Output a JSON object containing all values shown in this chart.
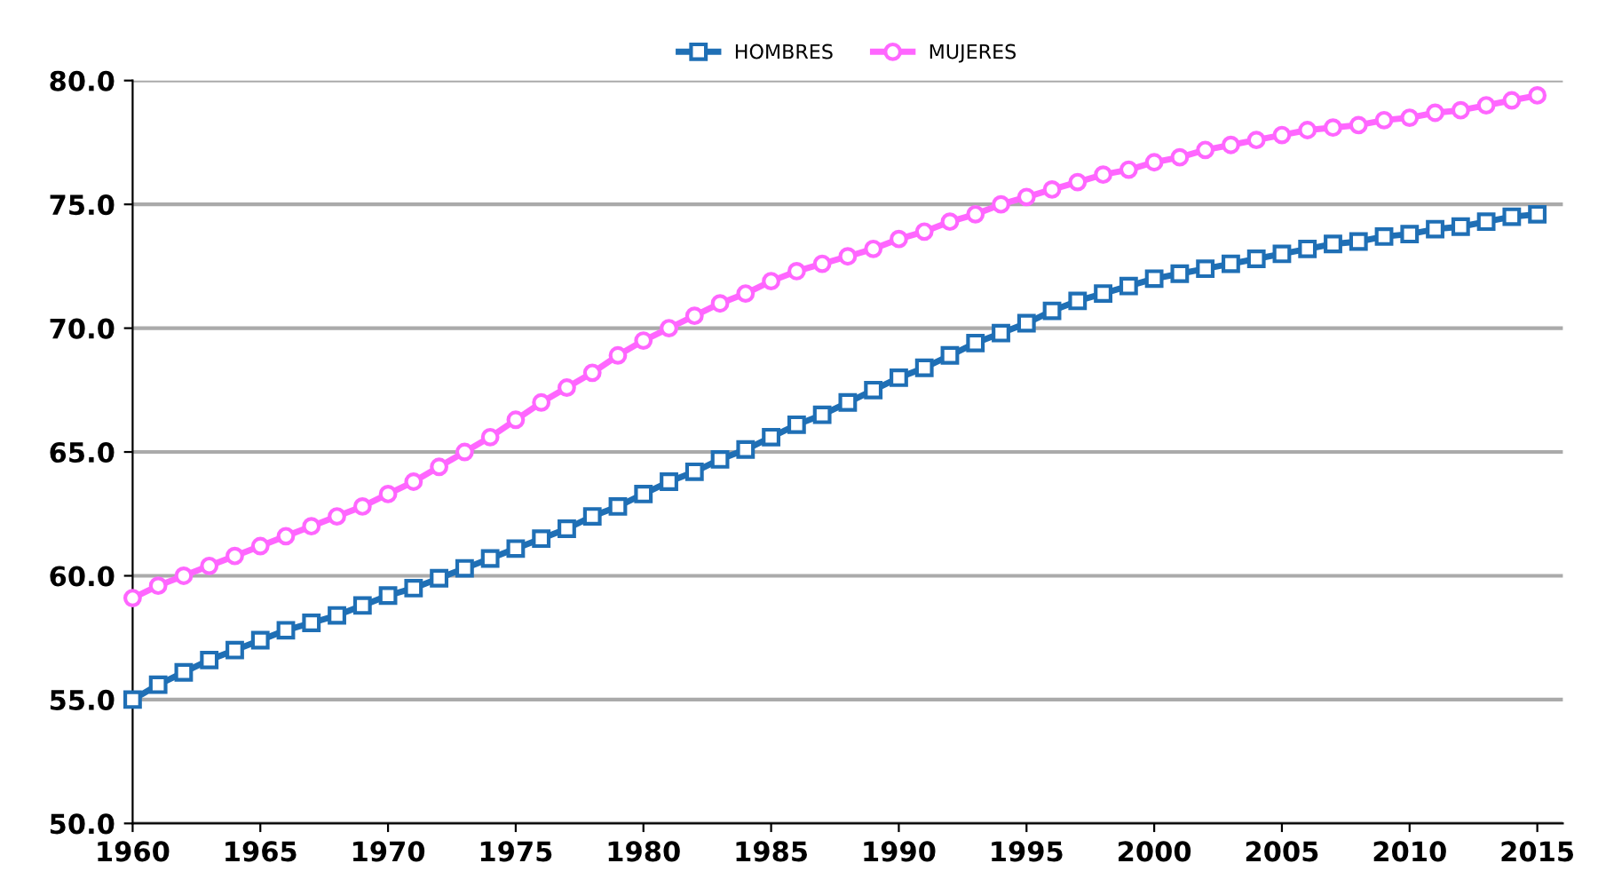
{
  "chart_data": {
    "type": "line",
    "x": [
      1960,
      1961,
      1962,
      1963,
      1964,
      1965,
      1966,
      1967,
      1968,
      1969,
      1970,
      1971,
      1972,
      1973,
      1974,
      1975,
      1976,
      1977,
      1978,
      1979,
      1980,
      1981,
      1982,
      1983,
      1984,
      1985,
      1986,
      1987,
      1988,
      1989,
      1990,
      1991,
      1992,
      1993,
      1994,
      1995,
      1996,
      1997,
      1998,
      1999,
      2000,
      2001,
      2002,
      2003,
      2004,
      2005,
      2006,
      2007,
      2008,
      2009,
      2010,
      2011,
      2012,
      2013,
      2014,
      2015
    ],
    "series": [
      {
        "name": "HOMBRES",
        "color": "#1f6fb5",
        "marker": "square",
        "values": [
          55.0,
          55.6,
          56.1,
          56.6,
          57.0,
          57.4,
          57.8,
          58.1,
          58.4,
          58.8,
          59.2,
          59.5,
          59.9,
          60.3,
          60.7,
          61.1,
          61.5,
          61.9,
          62.4,
          62.8,
          63.3,
          63.8,
          64.2,
          64.7,
          65.1,
          65.6,
          66.1,
          66.5,
          67.0,
          67.5,
          68.0,
          68.4,
          68.9,
          69.4,
          69.8,
          70.2,
          70.7,
          71.1,
          71.4,
          71.7,
          72.0,
          72.2,
          72.4,
          72.6,
          72.8,
          73.0,
          73.2,
          73.4,
          73.5,
          73.7,
          73.8,
          74.0,
          74.1,
          74.3,
          74.5,
          74.6
        ]
      },
      {
        "name": "MUJERES",
        "color": "#ff66ff",
        "marker": "circle",
        "values": [
          59.1,
          59.6,
          60.0,
          60.4,
          60.8,
          61.2,
          61.6,
          62.0,
          62.4,
          62.8,
          63.3,
          63.8,
          64.4,
          65.0,
          65.6,
          66.3,
          67.0,
          67.6,
          68.2,
          68.9,
          69.5,
          70.0,
          70.5,
          71.0,
          71.4,
          71.9,
          72.3,
          72.6,
          72.9,
          73.2,
          73.6,
          73.9,
          74.3,
          74.6,
          75.0,
          75.3,
          75.6,
          75.9,
          76.2,
          76.4,
          76.7,
          76.9,
          77.2,
          77.4,
          77.6,
          77.8,
          78.0,
          78.1,
          78.2,
          78.4,
          78.5,
          78.7,
          78.8,
          79.0,
          79.2,
          79.4
        ]
      }
    ],
    "xlim": [
      1960,
      2016
    ],
    "xticks": [
      1960,
      1965,
      1970,
      1975,
      1980,
      1985,
      1990,
      1995,
      2000,
      2005,
      2010,
      2015
    ],
    "ylim": [
      50,
      80
    ],
    "yticks": [
      {
        "value": 50,
        "label": "50.0"
      },
      {
        "value": 55,
        "label": "55.0"
      },
      {
        "value": 60,
        "label": "60.0"
      },
      {
        "value": 65,
        "label": "65.0"
      },
      {
        "value": 70,
        "label": "70.0"
      },
      {
        "value": 75,
        "label": "75.0"
      },
      {
        "value": 80,
        "label": "80.0"
      }
    ],
    "grid": "y",
    "legend": "top",
    "line_style": "solid"
  }
}
